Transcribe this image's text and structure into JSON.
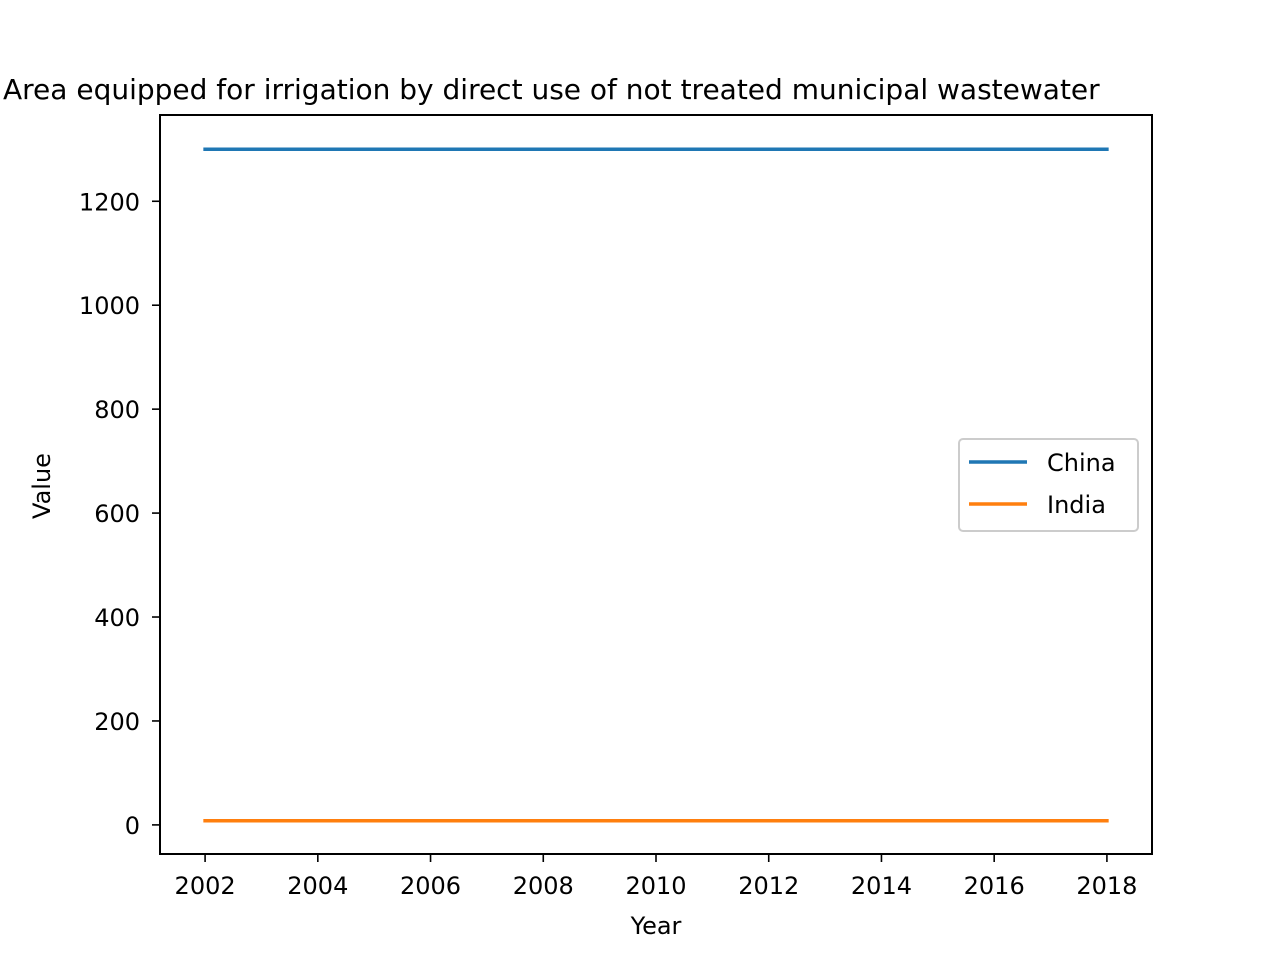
{
  "chart_data": {
    "type": "line",
    "title": "Area equipped for irrigation by direct use of not treated municipal wastewater",
    "xlabel": "Year",
    "ylabel": "Value",
    "x": [
      2002,
      2018
    ],
    "xticks": [
      2002,
      2004,
      2006,
      2008,
      2010,
      2012,
      2014,
      2016,
      2018
    ],
    "yticks": [
      0,
      200,
      400,
      600,
      800,
      1000,
      1200
    ],
    "xlim": [
      2001.2,
      2018.8
    ],
    "ylim": [
      -56,
      1366
    ],
    "grid": false,
    "legend_position": "center-right",
    "series": [
      {
        "name": "China",
        "color": "#1f77b4",
        "values": [
          1300,
          1300
        ]
      },
      {
        "name": "India",
        "color": "#ff7f0e",
        "values": [
          8,
          8
        ]
      }
    ]
  }
}
